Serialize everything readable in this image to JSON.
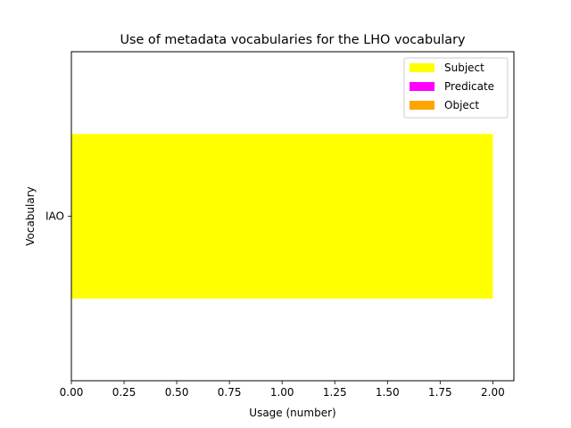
{
  "chart_data": {
    "type": "bar",
    "orientation": "horizontal",
    "stacked": true,
    "title": "Use of metadata vocabularies for the LHO vocabulary",
    "xlabel": "Usage (number)",
    "ylabel": "Vocabulary",
    "categories": [
      "IAO"
    ],
    "xlim": [
      0,
      2.1
    ],
    "xticks": [
      "0.00",
      "0.25",
      "0.50",
      "0.75",
      "1.00",
      "1.25",
      "1.50",
      "1.75",
      "2.00"
    ],
    "grid": false,
    "legend_position": "top-right",
    "series": [
      {
        "name": "Subject",
        "values": [
          2
        ],
        "color": "#ffff00"
      },
      {
        "name": "Predicate",
        "values": [
          0
        ],
        "color": "#ff00ff"
      },
      {
        "name": "Object",
        "values": [
          0
        ],
        "color": "#ffa500"
      }
    ]
  }
}
